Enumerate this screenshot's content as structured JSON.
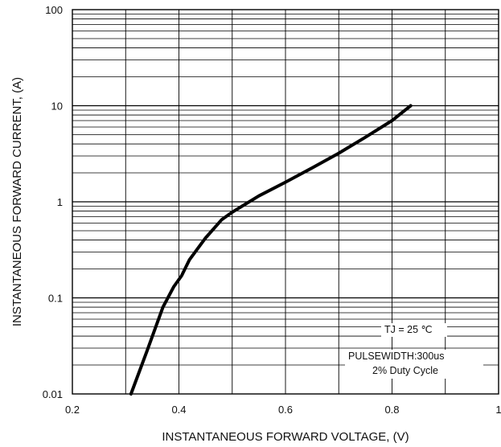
{
  "chart_data": {
    "type": "line",
    "xlabel": "INSTANTANEOUS FORWARD VOLTAGE, (V)",
    "ylabel": "INSTANTANEOUS FORWARD CURRENT, (A)",
    "xlim": [
      0.2,
      1.0
    ],
    "ylim": [
      0.01,
      100
    ],
    "yscale": "log",
    "grid": true,
    "x_ticks": [
      "0.2",
      "0.4",
      "0.6",
      "0.8",
      "1"
    ],
    "y_ticks": [
      "0.01",
      "0.1",
      "1",
      "10",
      "100"
    ],
    "series": [
      {
        "x": [
          0.31,
          0.34,
          0.37,
          0.39,
          0.405,
          0.42,
          0.45,
          0.48,
          0.5,
          0.55,
          0.6,
          0.65,
          0.7,
          0.75,
          0.8,
          0.835
        ],
        "y": [
          0.01,
          0.028,
          0.08,
          0.13,
          0.17,
          0.25,
          0.42,
          0.65,
          0.78,
          1.15,
          1.6,
          2.25,
          3.2,
          4.7,
          7.0,
          10.0
        ]
      }
    ],
    "annotations": [
      "TJ = 25 ℃",
      "PULSEWIDTH:300us",
      "2% Duty Cycle"
    ],
    "colors": {
      "line": "#000000",
      "grid": "#000000",
      "background": "#ffffff"
    }
  }
}
